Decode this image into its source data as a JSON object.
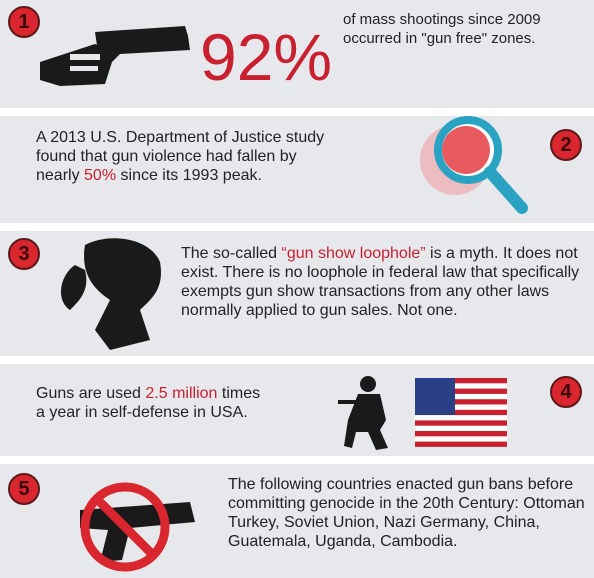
{
  "panels": [
    {
      "number": "1",
      "stat": "92%",
      "segments": [
        "of mass shootings since 2009 occurred in \"gun free\" zones."
      ]
    },
    {
      "number": "2",
      "segments": [
        "A 2013 U.S. Department of Justice study found that gun violence had fallen by nearly ",
        "50%",
        " since its 1993 peak."
      ]
    },
    {
      "number": "3",
      "segments": [
        "The so-called ",
        "“gun show loophole”",
        " is a myth. It does not exist. There is no loophole in federal law that specifically exempts gun show transactions from any other laws normally applied to gun sales. Not one."
      ]
    },
    {
      "number": "4",
      "segments": [
        "Guns are used ",
        "2.5 million",
        " times a year in self-defense in USA."
      ]
    },
    {
      "number": "5",
      "segments": [
        "The following countries enacted gun bans before committing genocide in the 20th Century: Ottoman Turkey, Soviet Union, Nazi Germany, China, Guatemala, Uganda, Cambodia."
      ]
    }
  ]
}
